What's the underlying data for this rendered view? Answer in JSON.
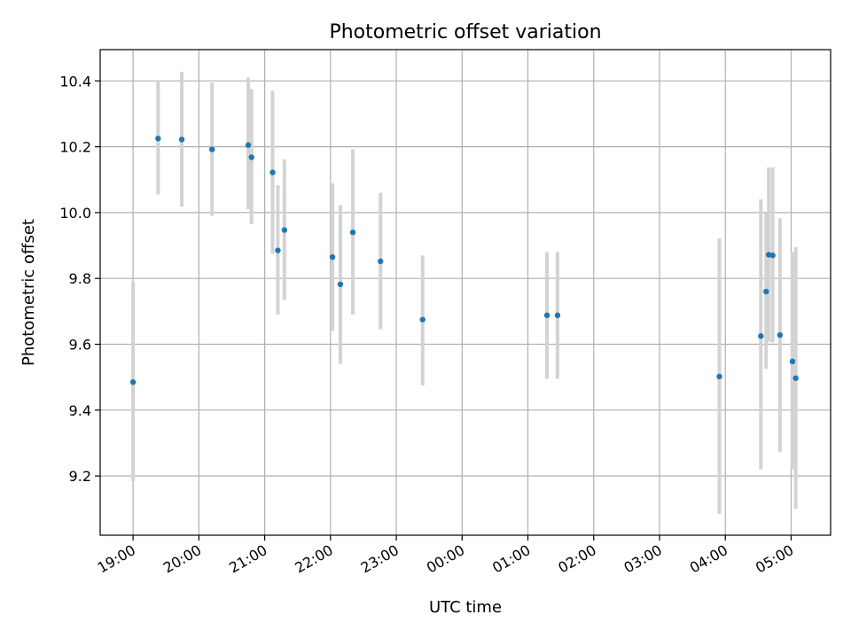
{
  "chart_data": {
    "type": "scatter",
    "title": "Photometric offset variation",
    "xlabel": "UTC time",
    "ylabel": "Photometric offset",
    "x_scale": "time",
    "xlim_hours": [
      18.5,
      29.6
    ],
    "ylim": [
      9.02,
      10.495
    ],
    "grid": true,
    "x_ticks": [
      {
        "hour": 19,
        "label": "19:00"
      },
      {
        "hour": 20,
        "label": "20:00"
      },
      {
        "hour": 21,
        "label": "21:00"
      },
      {
        "hour": 22,
        "label": "22:00"
      },
      {
        "hour": 23,
        "label": "23:00"
      },
      {
        "hour": 24,
        "label": "00:00"
      },
      {
        "hour": 25,
        "label": "01:00"
      },
      {
        "hour": 26,
        "label": "02:00"
      },
      {
        "hour": 27,
        "label": "03:00"
      },
      {
        "hour": 28,
        "label": "04:00"
      },
      {
        "hour": 29,
        "label": "05:00"
      }
    ],
    "y_ticks": [
      {
        "value": 9.2,
        "label": "9.2"
      },
      {
        "value": 9.4,
        "label": "9.4"
      },
      {
        "value": 9.6,
        "label": "9.6"
      },
      {
        "value": 9.8,
        "label": "9.8"
      },
      {
        "value": 10.0,
        "label": "10.0"
      },
      {
        "value": 10.2,
        "label": "10.2"
      },
      {
        "value": 10.4,
        "label": "10.4"
      }
    ],
    "colors": {
      "marker": "#1f77b4",
      "errorbar": "#d3d3d3"
    },
    "series": [
      {
        "points": [
          {
            "x": 19.0,
            "y": 9.485,
            "err_low": 9.185,
            "err_high": 9.79
          },
          {
            "x": 19.38,
            "y": 10.225,
            "err_low": 10.055,
            "err_high": 10.4
          },
          {
            "x": 19.74,
            "y": 10.222,
            "err_low": 10.018,
            "err_high": 10.428
          },
          {
            "x": 20.2,
            "y": 10.192,
            "err_low": 9.99,
            "err_high": 10.395
          },
          {
            "x": 20.75,
            "y": 10.205,
            "err_low": 10.01,
            "err_high": 10.41
          },
          {
            "x": 20.8,
            "y": 10.168,
            "err_low": 9.965,
            "err_high": 10.375
          },
          {
            "x": 21.12,
            "y": 10.122,
            "err_low": 9.875,
            "err_high": 10.37
          },
          {
            "x": 21.2,
            "y": 9.885,
            "err_low": 9.69,
            "err_high": 10.083
          },
          {
            "x": 21.3,
            "y": 9.947,
            "err_low": 9.735,
            "err_high": 10.162
          },
          {
            "x": 22.03,
            "y": 9.865,
            "err_low": 9.64,
            "err_high": 10.09
          },
          {
            "x": 22.15,
            "y": 9.782,
            "err_low": 9.54,
            "err_high": 10.023
          },
          {
            "x": 22.34,
            "y": 9.94,
            "err_low": 9.69,
            "err_high": 10.193
          },
          {
            "x": 22.76,
            "y": 9.852,
            "err_low": 9.645,
            "err_high": 10.06
          },
          {
            "x": 23.4,
            "y": 9.675,
            "err_low": 9.475,
            "err_high": 9.87
          },
          {
            "x": 25.29,
            "y": 9.688,
            "err_low": 9.495,
            "err_high": 9.88
          },
          {
            "x": 25.45,
            "y": 9.688,
            "err_low": 9.495,
            "err_high": 9.88
          },
          {
            "x": 27.91,
            "y": 9.502,
            "err_low": 9.085,
            "err_high": 9.922
          },
          {
            "x": 28.54,
            "y": 9.625,
            "err_low": 9.22,
            "err_high": 10.04
          },
          {
            "x": 28.62,
            "y": 9.76,
            "err_low": 9.525,
            "err_high": 9.998
          },
          {
            "x": 28.66,
            "y": 9.872,
            "err_low": 9.608,
            "err_high": 10.137
          },
          {
            "x": 28.72,
            "y": 9.87,
            "err_low": 9.605,
            "err_high": 10.137
          },
          {
            "x": 28.83,
            "y": 9.628,
            "err_low": 9.272,
            "err_high": 9.983
          },
          {
            "x": 29.02,
            "y": 9.548,
            "err_low": 9.22,
            "err_high": 9.88
          },
          {
            "x": 29.07,
            "y": 9.497,
            "err_low": 9.1,
            "err_high": 9.895
          }
        ]
      }
    ]
  }
}
